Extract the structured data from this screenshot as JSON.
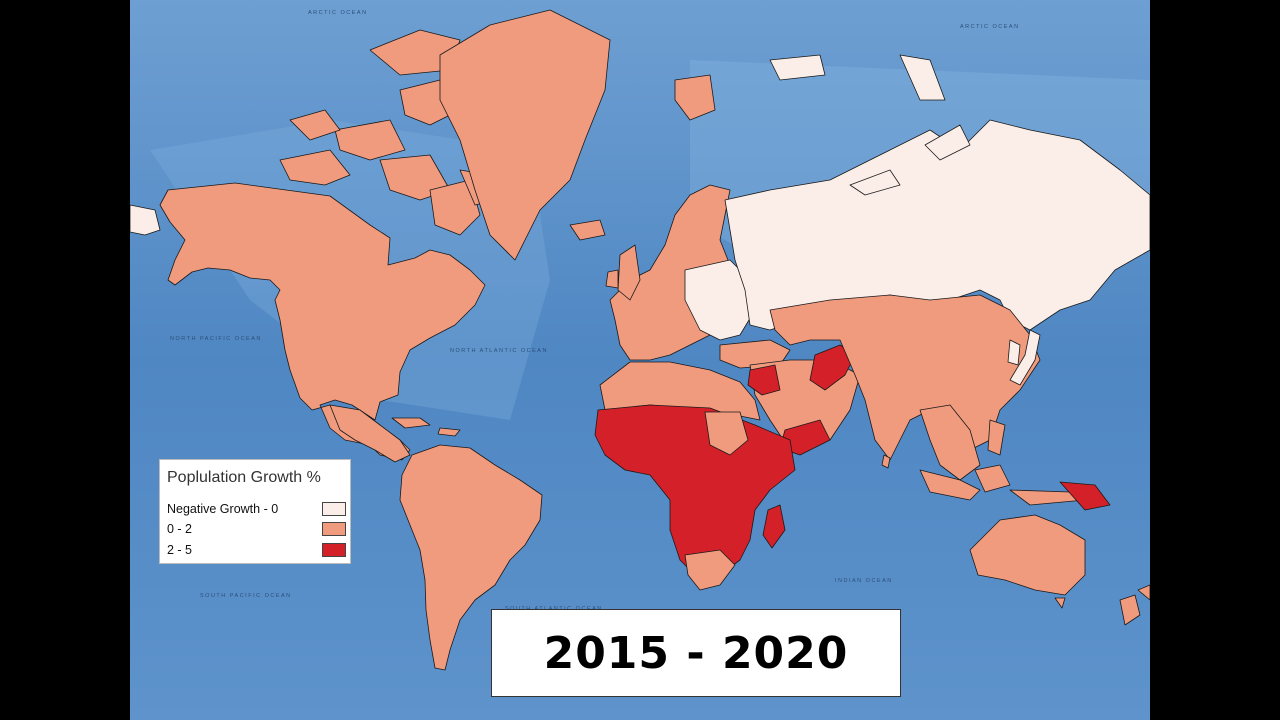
{
  "legend": {
    "title": "Poplulation Growth %",
    "items": [
      {
        "label": "Negative Growth - 0",
        "color": "#fbeee9"
      },
      {
        "label": "0 - 2",
        "color": "#f09a7e"
      },
      {
        "label": "2 - 5",
        "color": "#d42028"
      }
    ]
  },
  "period": "2015 - 2020",
  "ocean_labels": [
    "ARCTIC OCEAN",
    "ARCTIC OCEAN",
    "NORTH PACIFIC OCEAN",
    "NORTH ATLANTIC OCEAN",
    "SOUTH PACIFIC OCEAN",
    "SOUTH ATLANTIC OCEAN",
    "INDIAN OCEAN"
  ],
  "colors": {
    "ocean": "#4f87c3",
    "negative": "#fbeee9",
    "low": "#f09a7e",
    "high": "#d42028",
    "border": "#1a1a1a"
  }
}
